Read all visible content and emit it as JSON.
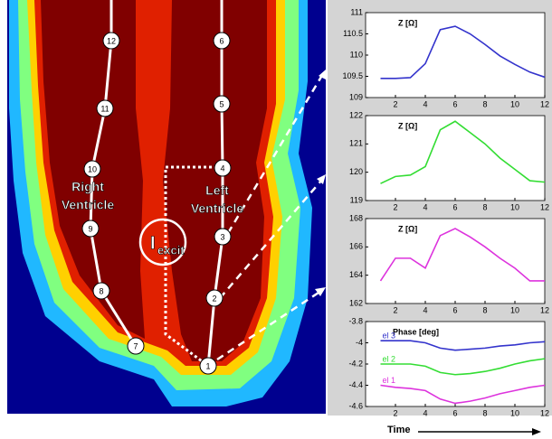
{
  "figure": {
    "electrodes": [
      "1",
      "2",
      "3",
      "4",
      "5",
      "6",
      "7",
      "8",
      "9",
      "10",
      "11",
      "12"
    ],
    "right_ventricle": [
      "Right",
      "Ventricle"
    ],
    "left_ventricle": [
      "Left",
      "Ventricle"
    ],
    "current_label": {
      "main": "I",
      "sub": "excit"
    },
    "time_label": "Time"
  },
  "chart_data": [
    {
      "type": "line",
      "title": "Z [Ω]",
      "x": [
        1,
        2,
        3,
        4,
        5,
        6,
        7,
        8,
        9,
        10,
        11,
        12
      ],
      "xlim": [
        0,
        12
      ],
      "xticks": [
        2,
        4,
        6,
        8,
        10,
        12
      ],
      "ylim": [
        109,
        111
      ],
      "yticks": [
        109,
        109.5,
        110,
        110.5,
        111
      ],
      "series": [
        {
          "color": "#3333cc",
          "values": [
            109.45,
            109.45,
            109.47,
            109.8,
            110.6,
            110.68,
            110.5,
            110.25,
            109.98,
            109.78,
            109.6,
            109.48
          ]
        }
      ]
    },
    {
      "type": "line",
      "title": "Z [Ω]",
      "x": [
        1,
        2,
        3,
        4,
        5,
        6,
        7,
        8,
        9,
        10,
        11,
        12
      ],
      "xlim": [
        0,
        12
      ],
      "xticks": [
        2,
        4,
        6,
        8,
        10,
        12
      ],
      "ylim": [
        119,
        122
      ],
      "yticks": [
        119,
        120,
        121,
        122
      ],
      "series": [
        {
          "color": "#33dd33",
          "values": [
            119.6,
            119.85,
            119.9,
            120.2,
            121.5,
            121.8,
            121.4,
            121.0,
            120.5,
            120.1,
            119.7,
            119.65
          ]
        }
      ]
    },
    {
      "type": "line",
      "title": "Z [Ω]",
      "x": [
        1,
        2,
        3,
        4,
        5,
        6,
        7,
        8,
        9,
        10,
        11,
        12
      ],
      "xlim": [
        0,
        12
      ],
      "xticks": [
        2,
        4,
        6,
        8,
        10,
        12
      ],
      "ylim": [
        162,
        168
      ],
      "yticks": [
        162,
        164,
        166,
        168
      ],
      "series": [
        {
          "color": "#dd33dd",
          "values": [
            163.6,
            165.2,
            165.2,
            164.5,
            166.8,
            167.3,
            166.7,
            166.0,
            165.2,
            164.5,
            163.6,
            163.6
          ]
        }
      ]
    },
    {
      "type": "line",
      "title": "Phase [deg]",
      "x": [
        1,
        2,
        3,
        4,
        5,
        6,
        7,
        8,
        9,
        10,
        11,
        12
      ],
      "xlim": [
        0,
        12
      ],
      "xticks": [
        2,
        4,
        6,
        8,
        10,
        12
      ],
      "ylim": [
        -4.6,
        -3.8
      ],
      "yticks": [
        -4.6,
        -4.4,
        -4.2,
        -4,
        -3.8
      ],
      "series": [
        {
          "name": "el 3",
          "color": "#3333cc",
          "values": [
            -3.98,
            -3.98,
            -3.98,
            -4.0,
            -4.05,
            -4.07,
            -4.06,
            -4.05,
            -4.03,
            -4.02,
            -4.0,
            -3.99
          ]
        },
        {
          "name": "el 2",
          "color": "#33dd33",
          "values": [
            -4.2,
            -4.2,
            -4.2,
            -4.22,
            -4.28,
            -4.3,
            -4.29,
            -4.27,
            -4.24,
            -4.2,
            -4.17,
            -4.15
          ]
        },
        {
          "name": "el 1",
          "color": "#dd33dd",
          "values": [
            -4.4,
            -4.42,
            -4.43,
            -4.45,
            -4.53,
            -4.57,
            -4.55,
            -4.52,
            -4.48,
            -4.45,
            -4.42,
            -4.4
          ]
        }
      ]
    }
  ]
}
